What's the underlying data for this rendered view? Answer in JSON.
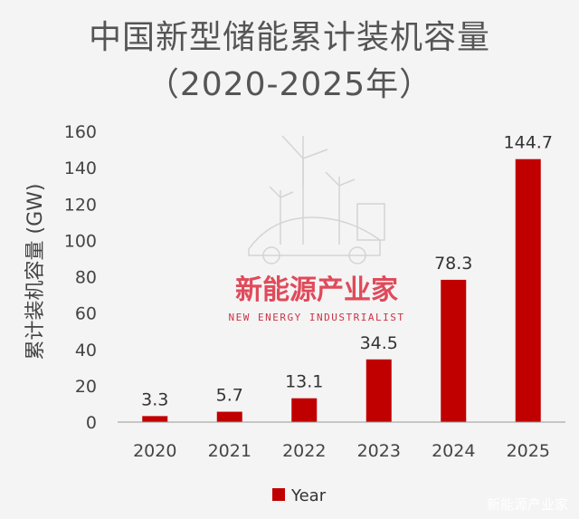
{
  "title_line1": "中国新型储能累计装机容量",
  "title_line2": "（2020-2025年）",
  "watermark": {
    "cn": "新能源产业家",
    "en": "NEW ENERGY INDUSTRIALIST"
  },
  "credit": "新能源产业家",
  "colors": {
    "bar": "#c00000",
    "axis": "#999999"
  },
  "chart_data": {
    "type": "bar",
    "title": "中国新型储能累计装机容量（2020-2025年）",
    "xlabel": "",
    "ylabel": "累计装机容量 (GW)",
    "categories": [
      "2020",
      "2021",
      "2022",
      "2023",
      "2024",
      "2025"
    ],
    "series": [
      {
        "name": "Year",
        "values": [
          3.3,
          5.7,
          13.1,
          34.5,
          78.3,
          144.7
        ]
      }
    ],
    "data_labels": [
      "3.3",
      "5.7",
      "13.1",
      "34.5",
      "78.3",
      "144.7"
    ],
    "yticks": [
      "0",
      "20",
      "40",
      "60",
      "80",
      "100",
      "120",
      "140",
      "160"
    ],
    "ylim": [
      0,
      160
    ],
    "legend": "bottom",
    "grid": false
  }
}
